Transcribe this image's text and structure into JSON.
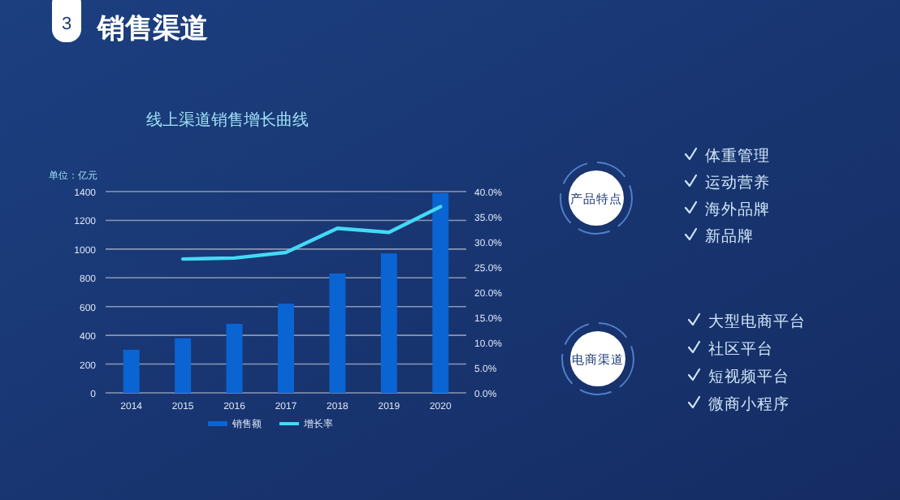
{
  "chart_data": {
    "type": "bar",
    "title": "线上渠道销售增长曲线",
    "ylabel": "单位：亿元",
    "categories": [
      "2014",
      "2015",
      "2016",
      "2017",
      "2018",
      "2019",
      "2020"
    ],
    "series": [
      {
        "name": "销售额",
        "color": "#0a64d2",
        "values": [
          300,
          380,
          480,
          620,
          830,
          970,
          1390
        ]
      },
      {
        "name": "增长率",
        "type": "line",
        "axis": "y2",
        "color": "#44d9f5",
        "values": [
          null,
          26.6,
          26.8,
          27.9,
          32.7,
          31.9,
          37.0
        ]
      }
    ],
    "ylim": [
      0,
      1400
    ],
    "yticks": [
      0,
      200,
      400,
      600,
      800,
      1000,
      1200,
      1400
    ],
    "y2lim": [
      0,
      40
    ],
    "y2ticks": [
      {
        "value": 0,
        "label": "0.0%"
      },
      {
        "value": 5,
        "label": "5.0%"
      },
      {
        "value": 10,
        "label": "10.0%"
      },
      {
        "value": 15,
        "label": "15.0%"
      },
      {
        "value": 20,
        "label": "20.0%"
      },
      {
        "value": 25,
        "label": "25.0%"
      },
      {
        "value": 30,
        "label": "30.0%"
      },
      {
        "value": 35,
        "label": "35.0%"
      },
      {
        "value": 40,
        "label": "40.0%"
      }
    ],
    "grid": "y",
    "legend": "bottom",
    "marker": "none",
    "annotations": [
      "3",
      "销售渠道",
      "产品特点",
      "体重管理",
      "运动营养",
      "海外品牌",
      "新品牌",
      "电商渠道",
      "大型电商平台",
      "社区平台",
      "短视频平台",
      "微商小程序"
    ]
  }
}
